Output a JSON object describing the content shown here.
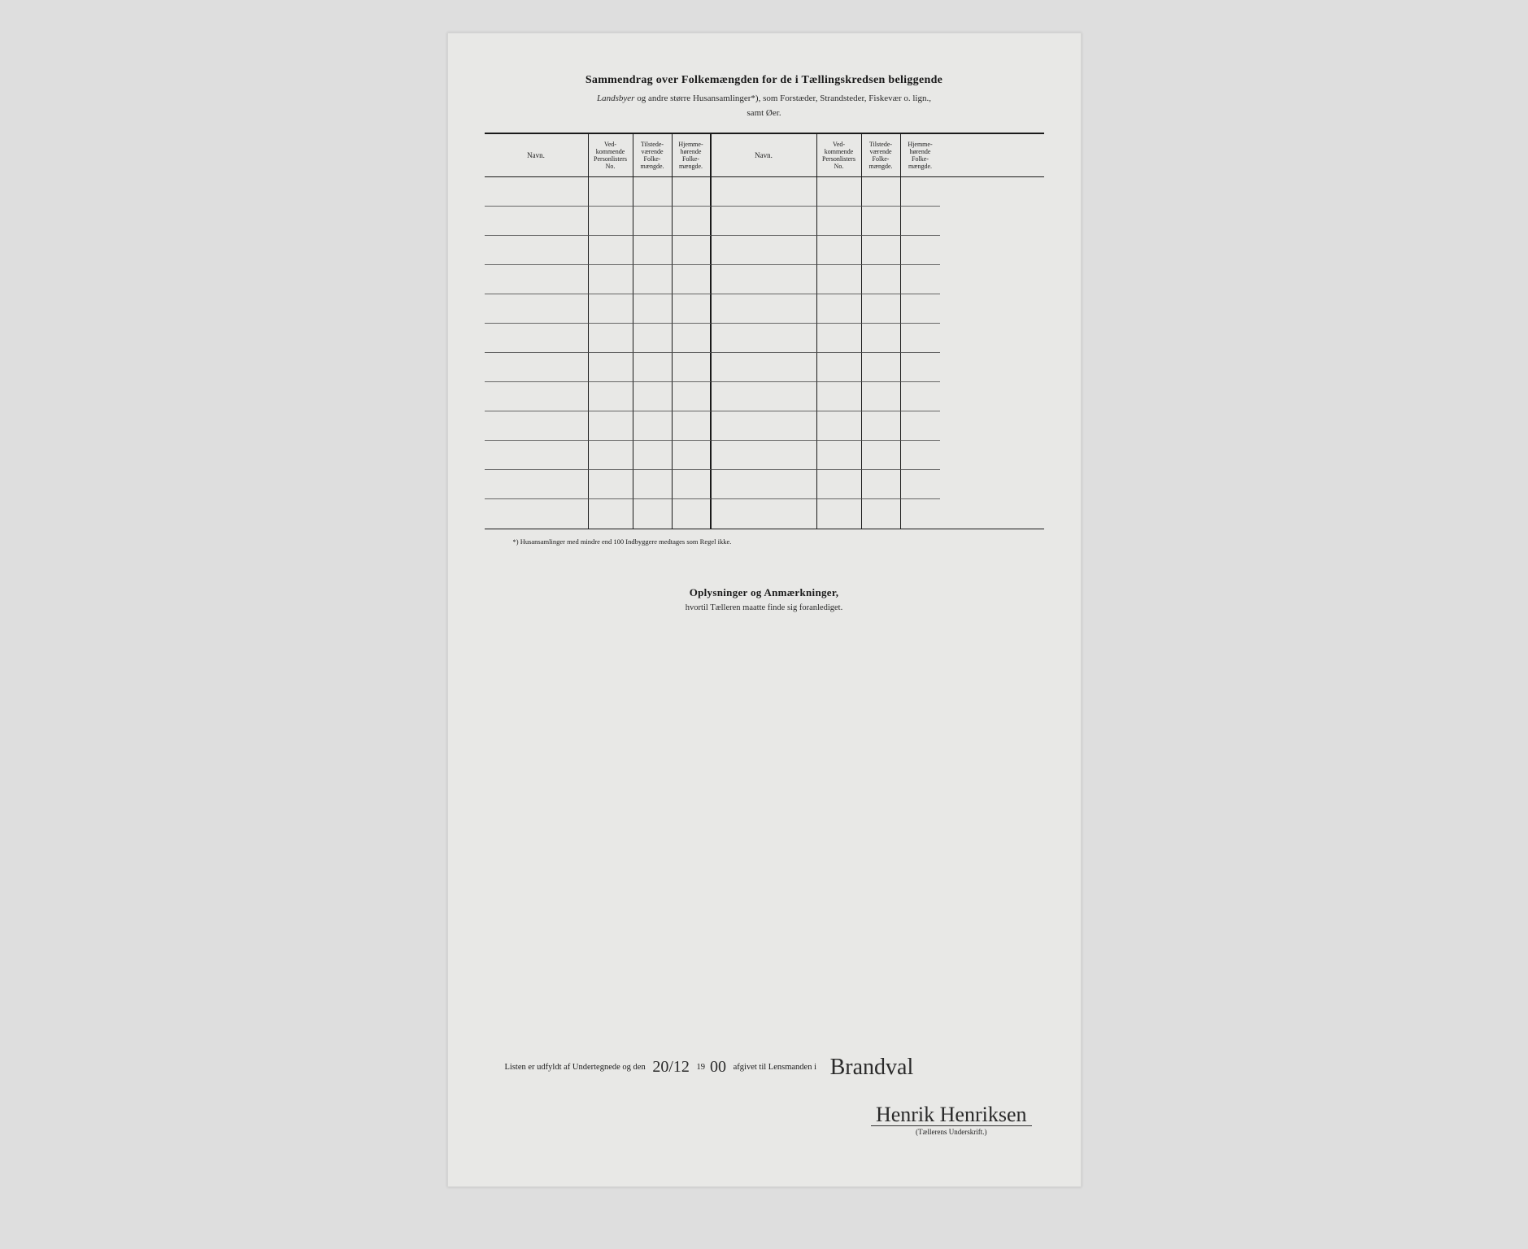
{
  "title": {
    "main": "Sammendrag over Folkemængden for de i Tællingskredsen beliggende",
    "sub_italic_1": "Landsbyer",
    "sub_norm": " og andre større Husansamlinger*), som Forstæder, Strandsteder, Fiskevær o. lign.,",
    "sub_end": "samt Øer."
  },
  "columns": {
    "navn": "Navn.",
    "no": "Ved-\nkommende\nPersonlisters\nNo.",
    "tilstede": "Tilstede-\nværende\nFolke-\nmængde.",
    "hjemme": "Hjemme-\nhørende\nFolke-\nmængde."
  },
  "footnote": "*) Husansamlinger med mindre end 100 Indbyggere medtages som Regel ikke.",
  "notes": {
    "title": "Oplysninger og Anmærkninger,",
    "sub": "hvortil Tælleren maatte finde sig foranlediget."
  },
  "dateLine": {
    "prefix": "Listen er udfyldt af Undertegnede og den",
    "date": "20/12",
    "year_prefix": "19",
    "year_suffix": "00",
    "mid": " afgivet til Lensmanden i",
    "place": "Brandval"
  },
  "signature": {
    "name": "Henrik Henriksen",
    "caption": "(Tællerens Underskrift.)"
  },
  "rowCount": 12,
  "colors": {
    "page_bg": "#e8e8e6",
    "body_bg": "#dedede",
    "ink": "#1a1a1a"
  }
}
